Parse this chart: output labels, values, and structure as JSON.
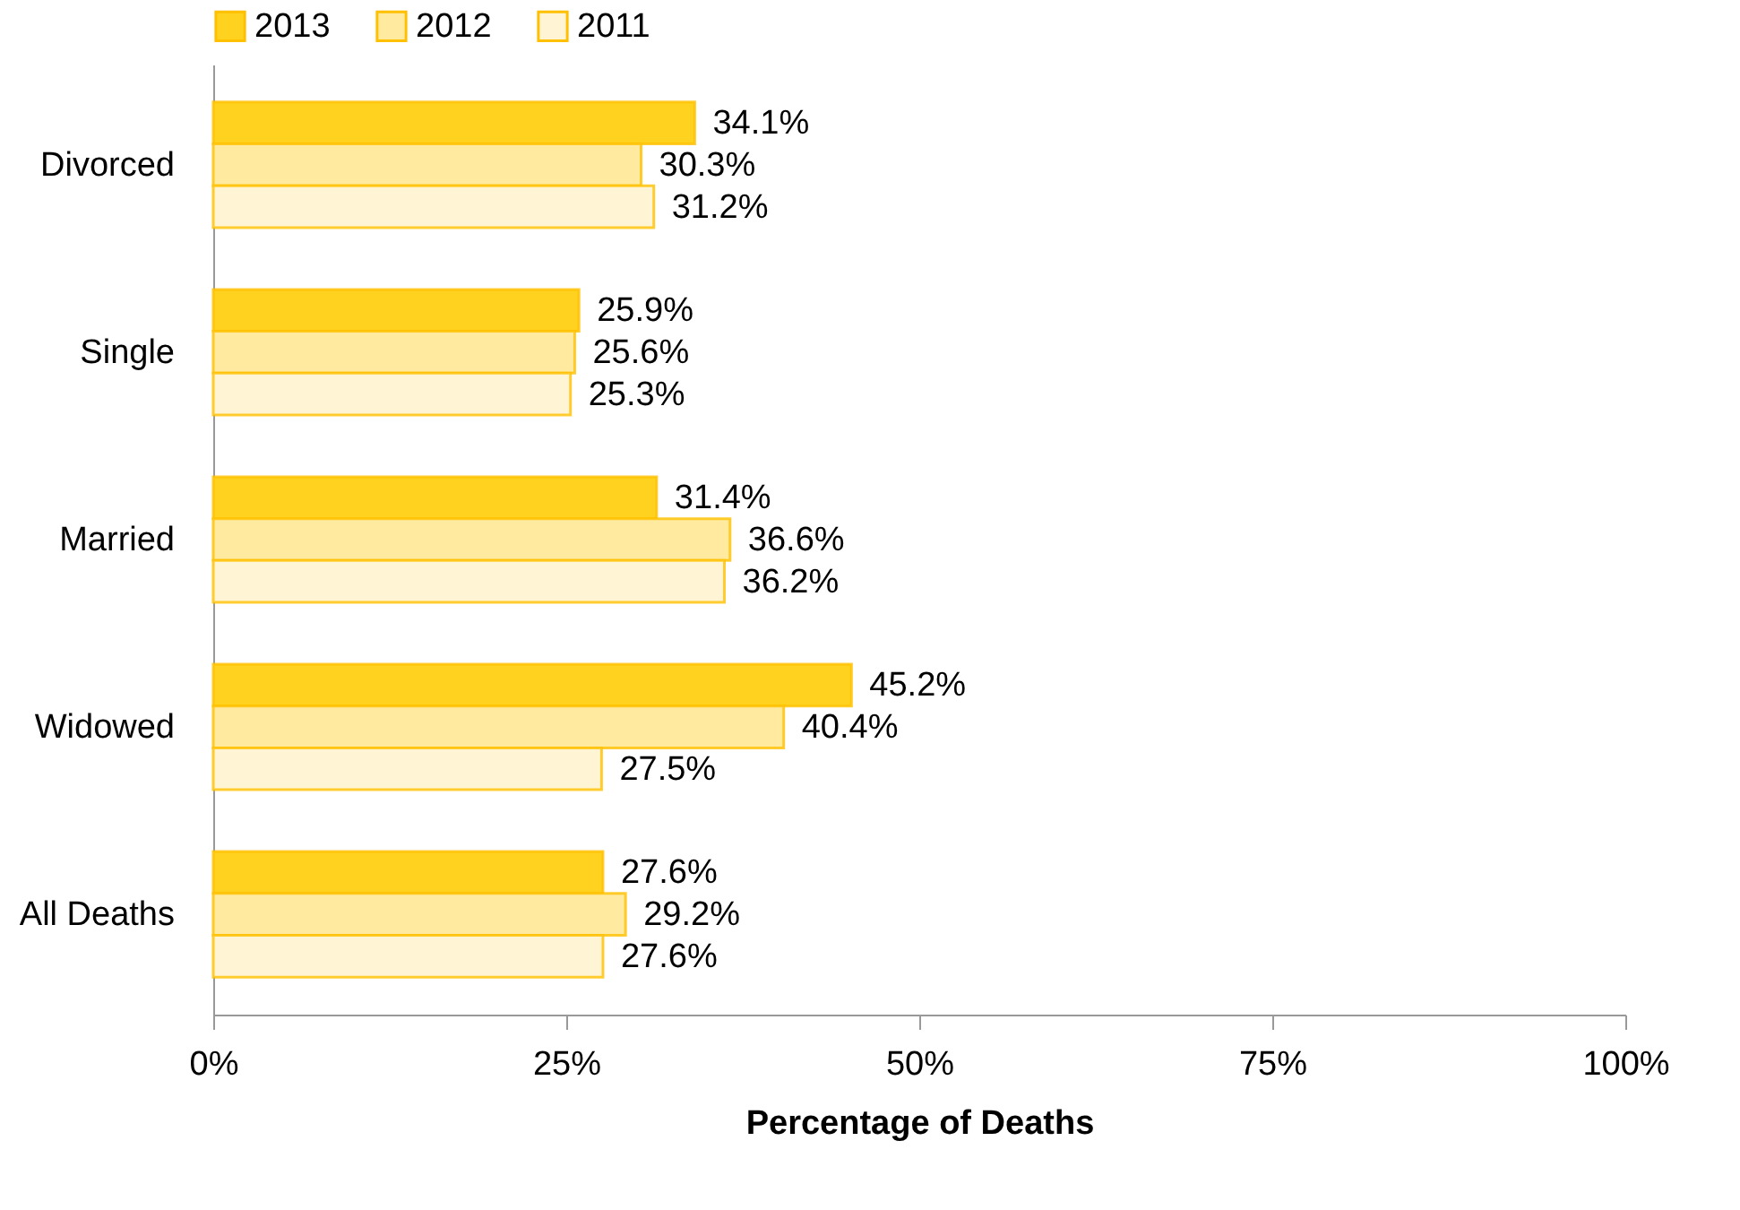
{
  "chart_data": {
    "type": "bar",
    "orientation": "horizontal",
    "xlabel": "Percentage of Deaths",
    "categories": [
      "Divorced",
      "Single",
      "Married",
      "Widowed",
      "All Deaths"
    ],
    "series": [
      {
        "name": "2013",
        "color": "#ffd21f",
        "values": [
          34.1,
          25.9,
          31.4,
          45.2,
          27.6
        ],
        "value_labels": [
          "34.1%",
          "25.9%",
          "31.4%",
          "45.2%",
          "27.6%"
        ]
      },
      {
        "name": "2012",
        "color": "#ffeaa0",
        "values": [
          30.3,
          25.6,
          36.6,
          40.4,
          29.2
        ],
        "value_labels": [
          "30.3%",
          "25.6%",
          "36.6%",
          "40.4%",
          "29.2%"
        ]
      },
      {
        "name": "2011",
        "color": "#fff4d4",
        "values": [
          31.2,
          25.3,
          36.2,
          27.5,
          27.6
        ],
        "value_labels": [
          "31.2%",
          "25.3%",
          "36.2%",
          "27.5%",
          "27.6%"
        ]
      }
    ],
    "xlim": [
      0,
      100
    ],
    "xticks": [
      {
        "value": 0,
        "label": "0%"
      },
      {
        "value": 25,
        "label": "25%"
      },
      {
        "value": 50,
        "label": "50%"
      },
      {
        "value": 75,
        "label": "75%"
      },
      {
        "value": 100,
        "label": "100%"
      }
    ],
    "legend": "top"
  }
}
